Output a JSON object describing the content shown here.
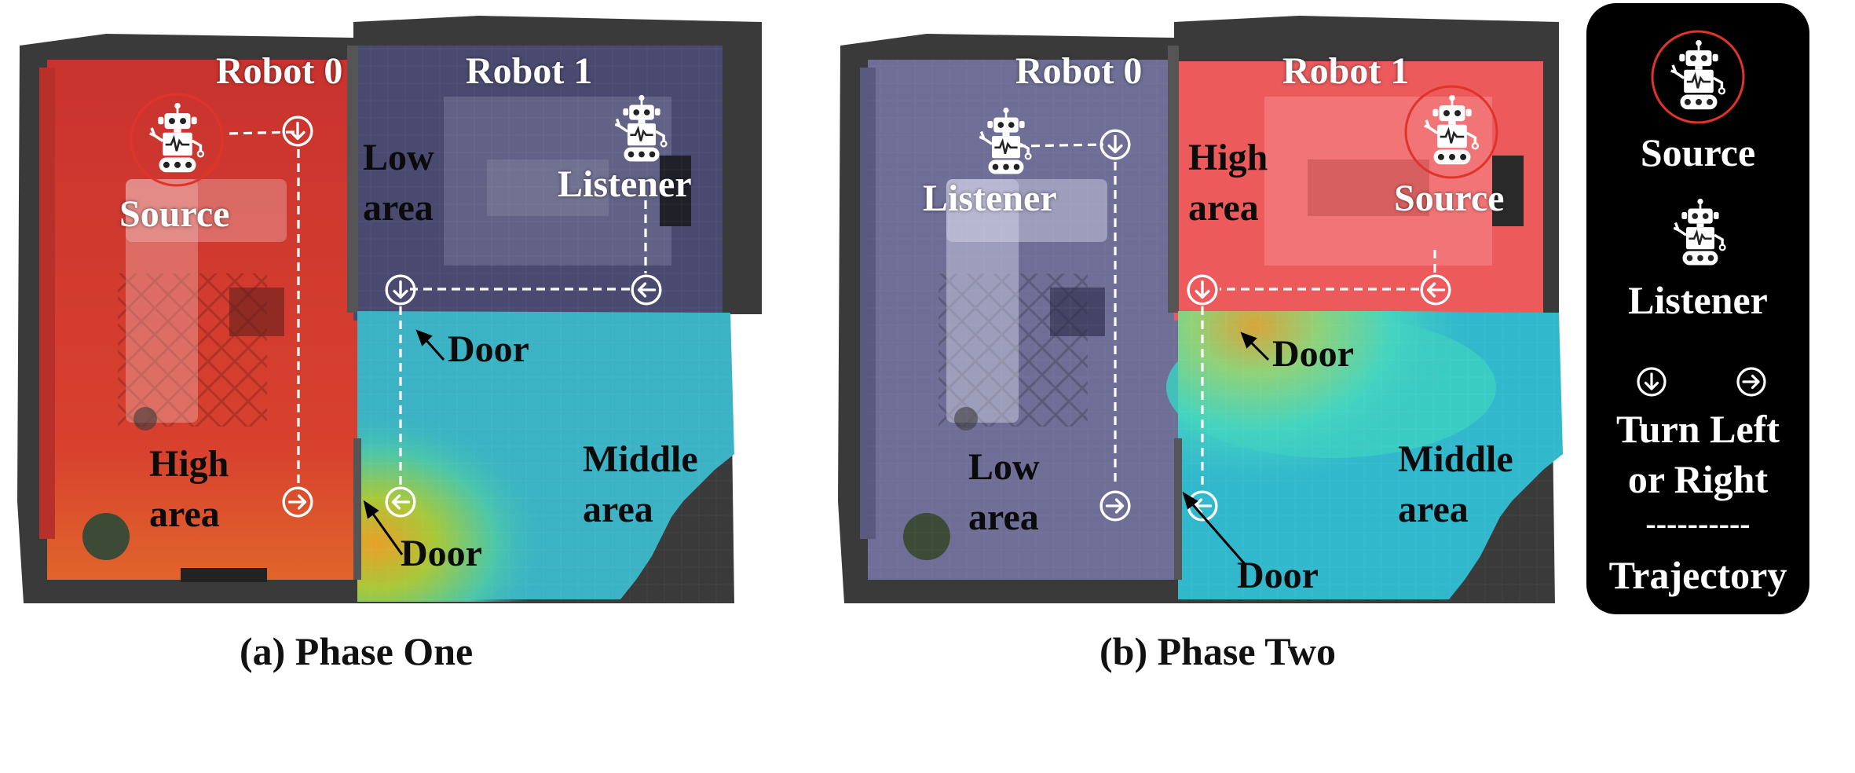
{
  "panel_a": {
    "caption": "(a) Phase One",
    "robot0": "Robot 0",
    "robot1": "Robot 1",
    "source": "Source",
    "listener": "Listener",
    "low_area": [
      "Low",
      "area"
    ],
    "high_area": [
      "High",
      "area"
    ],
    "middle_area": [
      "Middle",
      "area"
    ],
    "door_top": "Door",
    "door_bottom": "Door"
  },
  "panel_b": {
    "caption": "(b) Phase Two",
    "robot0": "Robot 0",
    "robot1": "Robot 1",
    "source": "Source",
    "listener": "Listener",
    "low_area": [
      "Low",
      "area"
    ],
    "high_area": [
      "High",
      "area"
    ],
    "middle_area": [
      "Middle",
      "area"
    ],
    "door_top": "Door",
    "door_bottom": "Door"
  },
  "legend": {
    "source": "Source",
    "listener": "Listener",
    "turn": [
      "Turn Left",
      "or Right"
    ],
    "trajectory_line": "----------",
    "trajectory": "Trajectory"
  },
  "colors": {
    "high_area": "#d8382f",
    "low_area": "#5a5a86",
    "middle_area": "#2fb3c6",
    "source_ring": "#e0342a",
    "trajectory": "#ffffff",
    "legend_bg": "#000000"
  },
  "icons": [
    "robot-icon",
    "turn-left-icon",
    "turn-right-icon",
    "wall",
    "sofa",
    "table",
    "plant"
  ]
}
